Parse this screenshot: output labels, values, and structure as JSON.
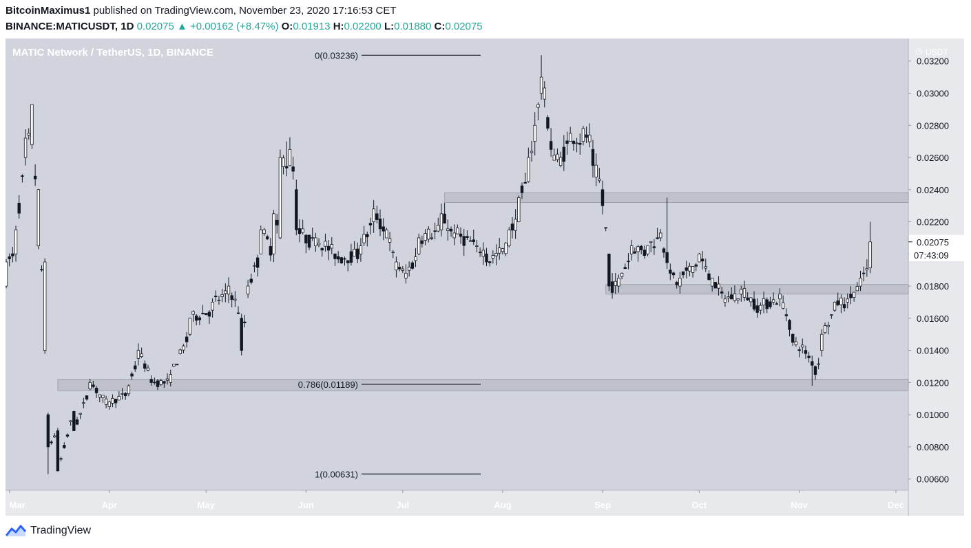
{
  "header": {
    "author": "BitcoinMaximus1",
    "published_text": "published on TradingView.com, November 23, 2020 17:16:53 CET",
    "symbol": "BINANCE:MATICUSDT",
    "interval": "1D",
    "last": "0.02075",
    "change": "+0.00162 (+8.47%)",
    "o_label": "O:",
    "o": "0.01913",
    "h_label": "H:",
    "h": "0.02200",
    "l_label": "L:",
    "l": "0.01880",
    "c_label": "C:",
    "c": "0.02075"
  },
  "footer": {
    "brand": "TradingView"
  },
  "colors": {
    "background": "#d1d4dc",
    "axis_bg": "#e8e9ed",
    "candle_up": "#ffffff",
    "candle_down": "#131722",
    "zone": "#b2b5be",
    "accent": "#26a69a"
  },
  "chart_data": {
    "type": "candlestick",
    "title": "MATIC Network / TetherUS, 1D, BINANCE",
    "y_unit": "USDT",
    "y_range": [
      0.0053,
      0.0334
    ],
    "y_ticks": [
      "0.03200",
      "0.03000",
      "0.02800",
      "0.02600",
      "0.02400",
      "0.02200",
      "0.02000",
      "0.01800",
      "0.01600",
      "0.01400",
      "0.01200",
      "0.01000",
      "0.00800",
      "0.00600"
    ],
    "x_labels": [
      "Mar",
      "Apr",
      "May",
      "Jun",
      "Jul",
      "Aug",
      "Sep",
      "Oct",
      "Nov",
      "Dec"
    ],
    "last_price_label": "0.02075",
    "countdown_label": "07:43:09",
    "fib_levels": [
      {
        "label": "0(0.03236)",
        "price": 0.03236
      },
      {
        "label": "0.786(0.01189)",
        "price": 0.01189
      },
      {
        "label": "1(0.00631)",
        "price": 0.00631
      }
    ],
    "zones": [
      {
        "from_date": "2020-07-14",
        "to_date": "2020-11-23",
        "low": 0.0232,
        "high": 0.0238
      },
      {
        "from_date": "2020-09-02",
        "to_date": "2020-11-23",
        "low": 0.0175,
        "high": 0.0181
      },
      {
        "from_date": "2020-03-16",
        "to_date": "2020-11-23",
        "low": 0.0115,
        "high": 0.0122
      }
    ],
    "anchors": [
      [
        "2020-02-29",
        0.018,
        0.0195
      ],
      [
        "2020-03-03",
        0.02,
        0.0215
      ],
      [
        "2020-03-06",
        0.026,
        0.0272
      ],
      [
        "2020-03-08",
        0.0268,
        0.0293
      ],
      [
        "2020-03-10",
        0.0205,
        0.024
      ],
      [
        "2020-03-12",
        0.014,
        0.0195
      ],
      [
        "2020-03-13",
        0.01,
        0.008
      ],
      [
        "2020-03-16",
        0.009,
        0.0065
      ],
      [
        "2020-03-21",
        0.0102,
        0.009
      ],
      [
        "2020-03-26",
        0.0116,
        0.012
      ],
      [
        "2020-04-01",
        0.0105,
        0.0108
      ],
      [
        "2020-04-07",
        0.0113,
        0.0118
      ],
      [
        "2020-04-10",
        0.0135,
        0.014
      ],
      [
        "2020-04-14",
        0.0122,
        0.012
      ],
      [
        "2020-04-20",
        0.012,
        0.0125
      ],
      [
        "2020-04-26",
        0.015,
        0.016
      ],
      [
        "2020-05-03",
        0.0165,
        0.017
      ],
      [
        "2020-05-08",
        0.0175,
        0.018
      ],
      [
        "2020-05-12",
        0.016,
        0.014
      ],
      [
        "2020-05-14",
        0.0175,
        0.018
      ],
      [
        "2020-05-18",
        0.02,
        0.0215
      ],
      [
        "2020-05-22",
        0.02,
        0.0225
      ],
      [
        "2020-05-24",
        0.021,
        0.026
      ],
      [
        "2020-05-27",
        0.0255,
        0.0265
      ],
      [
        "2020-05-29",
        0.024,
        0.0215
      ],
      [
        "2020-06-04",
        0.0205,
        0.021
      ],
      [
        "2020-06-10",
        0.02,
        0.0197
      ],
      [
        "2020-06-18",
        0.02,
        0.0205
      ],
      [
        "2020-06-22",
        0.022,
        0.0228
      ],
      [
        "2020-06-26",
        0.021,
        0.0215
      ],
      [
        "2020-06-29",
        0.019,
        0.0195
      ],
      [
        "2020-07-02",
        0.0185,
        0.0188
      ],
      [
        "2020-07-06",
        0.02,
        0.021
      ],
      [
        "2020-07-13",
        0.0215,
        0.0225
      ],
      [
        "2020-07-17",
        0.021,
        0.0213
      ],
      [
        "2020-07-24",
        0.0205,
        0.0205
      ],
      [
        "2020-07-27",
        0.02,
        0.0195
      ],
      [
        "2020-08-03",
        0.0205,
        0.0215
      ],
      [
        "2020-08-06",
        0.022,
        0.0235
      ],
      [
        "2020-08-09",
        0.0245,
        0.026
      ],
      [
        "2020-08-11",
        0.027,
        0.028
      ],
      [
        "2020-08-13",
        0.03,
        0.031
      ],
      [
        "2020-08-16",
        0.027,
        0.0265
      ],
      [
        "2020-08-19",
        0.0255,
        0.026
      ],
      [
        "2020-08-22",
        0.027,
        0.0275
      ],
      [
        "2020-08-26",
        0.027,
        0.0278
      ],
      [
        "2020-08-29",
        0.0265,
        0.0255
      ],
      [
        "2020-09-01",
        0.024,
        0.023
      ],
      [
        "2020-09-03",
        0.02,
        0.018
      ],
      [
        "2020-09-06",
        0.018,
        0.0185
      ],
      [
        "2020-09-10",
        0.02,
        0.0205
      ],
      [
        "2020-09-15",
        0.02,
        0.0205
      ],
      [
        "2020-09-19",
        0.021,
        0.0213
      ],
      [
        "2020-09-22",
        0.019,
        0.0188
      ],
      [
        "2020-09-25",
        0.018,
        0.0185
      ],
      [
        "2020-10-01",
        0.0195,
        0.02
      ],
      [
        "2020-10-05",
        0.018,
        0.0185
      ],
      [
        "2020-10-09",
        0.017,
        0.0172
      ],
      [
        "2020-10-14",
        0.0175,
        0.0178
      ],
      [
        "2020-10-20",
        0.0165,
        0.0168
      ],
      [
        "2020-10-26",
        0.0172,
        0.0175
      ],
      [
        "2020-10-30",
        0.015,
        0.0145
      ],
      [
        "2020-11-03",
        0.014,
        0.0138
      ],
      [
        "2020-11-06",
        0.013,
        0.0125
      ],
      [
        "2020-11-08",
        0.014,
        0.015
      ],
      [
        "2020-11-12",
        0.0165,
        0.017
      ],
      [
        "2020-11-16",
        0.017,
        0.0172
      ],
      [
        "2020-11-20",
        0.018,
        0.0185
      ],
      [
        "2020-11-22",
        0.019,
        0.0191
      ],
      [
        "2020-11-23",
        0.01913,
        0.02075
      ]
    ],
    "extremes": [
      {
        "date": "2020-03-08",
        "high": 0.0293
      },
      {
        "date": "2020-03-13",
        "low": 0.0063
      },
      {
        "date": "2020-03-16",
        "low": 0.0065
      },
      {
        "date": "2020-05-26",
        "high": 0.027
      },
      {
        "date": "2020-08-13",
        "high": 0.03236
      },
      {
        "date": "2020-09-21",
        "high": 0.0235
      },
      {
        "date": "2020-11-05",
        "low": 0.0118
      },
      {
        "date": "2020-11-23",
        "high": 0.022,
        "low": 0.0188
      }
    ]
  }
}
